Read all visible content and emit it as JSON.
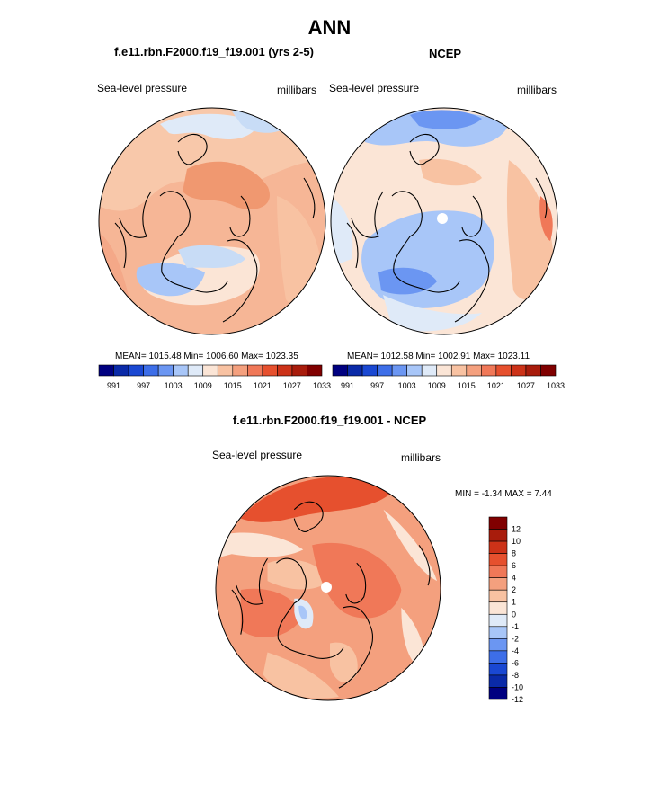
{
  "page": {
    "title": "ANN"
  },
  "panels": [
    {
      "title": "f.e11.rbn.F2000.f19_f19.001 (yrs 2-5)",
      "variable": "Sea-level pressure",
      "units": "millibars",
      "stats": "MEAN= 1015.48  Min= 1006.60  Max= 1023.35"
    },
    {
      "title": "NCEP",
      "variable": "Sea-level pressure",
      "units": "millibars",
      "stats": "MEAN= 1012.58  Min= 1002.91  Max= 1023.11"
    }
  ],
  "diff": {
    "title": "f.e11.rbn.F2000.f19_f19.001 - NCEP",
    "variable": "Sea-level pressure",
    "units": "millibars",
    "minmax": "MIN =  -1.34 MAX =   7.44"
  },
  "colorbar_abs": {
    "colors": [
      "#000080",
      "#0a2aa8",
      "#1a48d2",
      "#3d6ee8",
      "#6b96f2",
      "#a8c6f8",
      "#dfeaf8",
      "#fbe5d6",
      "#f8c2a2",
      "#f4a07e",
      "#f07858",
      "#e6502e",
      "#cc3218",
      "#a81c0c",
      "#800000"
    ],
    "labels": [
      "991",
      "997",
      "1003",
      "1009",
      "1015",
      "1021",
      "1027",
      "1033"
    ]
  },
  "colorbar_diff": {
    "colors": [
      "#800000",
      "#a81c0c",
      "#cc3218",
      "#e6502e",
      "#f07858",
      "#f4a07e",
      "#f8c2a2",
      "#fbe5d6",
      "#dfeaf8",
      "#a8c6f8",
      "#6b96f2",
      "#3d6ee8",
      "#1a48d2",
      "#0a2aa8",
      "#000080"
    ],
    "labels": [
      "12",
      "10",
      "8",
      "6",
      "4",
      "2",
      "1",
      "0",
      "-1",
      "-2",
      "-4",
      "-6",
      "-8",
      "-10",
      "-12"
    ]
  }
}
